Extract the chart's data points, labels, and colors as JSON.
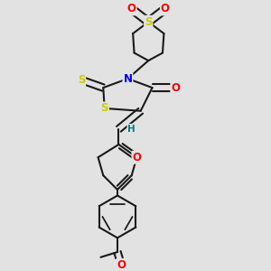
{
  "bg_color": "#e2e2e2",
  "atom_colors": {
    "S": "#cccc00",
    "O": "#ff0000",
    "N": "#0000ff",
    "H": "#008080"
  },
  "bond_color": "#1a1a1a",
  "bond_width": 1.5,
  "font_size_atoms": 8.5,
  "font_size_H": 7.5
}
